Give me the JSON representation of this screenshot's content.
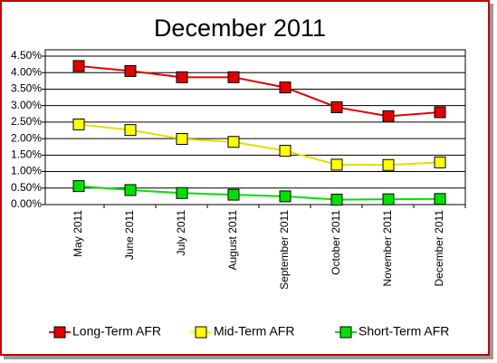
{
  "chart_data": {
    "type": "line",
    "title": "December 2011",
    "categories": [
      "May 2011",
      "June 2011",
      "July 2011",
      "August 2011",
      "September 2011",
      "October 2011",
      "November 2011",
      "December 2011"
    ],
    "series": [
      {
        "name": "Long-Term AFR",
        "color": "#e00000",
        "values": [
          4.2,
          4.05,
          3.86,
          3.86,
          3.55,
          2.95,
          2.68,
          2.8
        ]
      },
      {
        "name": "Mid-Term AFR",
        "color": "#ffff00",
        "values": [
          2.43,
          2.26,
          1.99,
          1.9,
          1.63,
          1.21,
          1.2,
          1.28
        ]
      },
      {
        "name": "Short-Term AFR",
        "color": "#00e000",
        "values": [
          0.56,
          0.44,
          0.35,
          0.3,
          0.25,
          0.15,
          0.16,
          0.17
        ]
      }
    ],
    "ylim": [
      0,
      4.5
    ],
    "yticks": [
      {
        "value": 0,
        "label": "0.00%"
      },
      {
        "value": 0.5,
        "label": "0.50%"
      },
      {
        "value": 1,
        "label": "1.00%"
      },
      {
        "value": 1.5,
        "label": "1.50%"
      },
      {
        "value": 2,
        "label": "2.00%"
      },
      {
        "value": 2.5,
        "label": "2.50%"
      },
      {
        "value": 3,
        "label": "3.00%"
      },
      {
        "value": 3.5,
        "label": "3.50%"
      },
      {
        "value": 4,
        "label": "4.00%"
      },
      {
        "value": 4.5,
        "label": "4.50%"
      }
    ],
    "grid": true,
    "legend": "bottom"
  }
}
